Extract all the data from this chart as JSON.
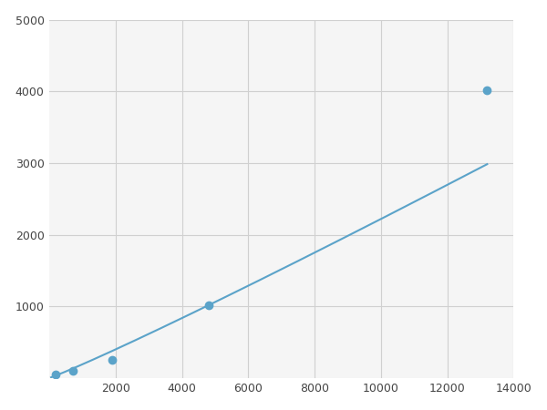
{
  "x": [
    200,
    700,
    1900,
    4800,
    13200
  ],
  "y": [
    50,
    100,
    250,
    1020,
    4020
  ],
  "line_color": "#5ba3c9",
  "marker_color": "#5ba3c9",
  "marker_size": 6,
  "line_width": 1.5,
  "xlim": [
    0,
    14000
  ],
  "ylim": [
    0,
    5000
  ],
  "xticks": [
    2000,
    4000,
    6000,
    8000,
    10000,
    12000,
    14000
  ],
  "yticks": [
    1000,
    2000,
    3000,
    4000,
    5000
  ],
  "grid_color": "#d0d0d0",
  "background_color": "#f5f5f5",
  "fig_background": "#ffffff"
}
